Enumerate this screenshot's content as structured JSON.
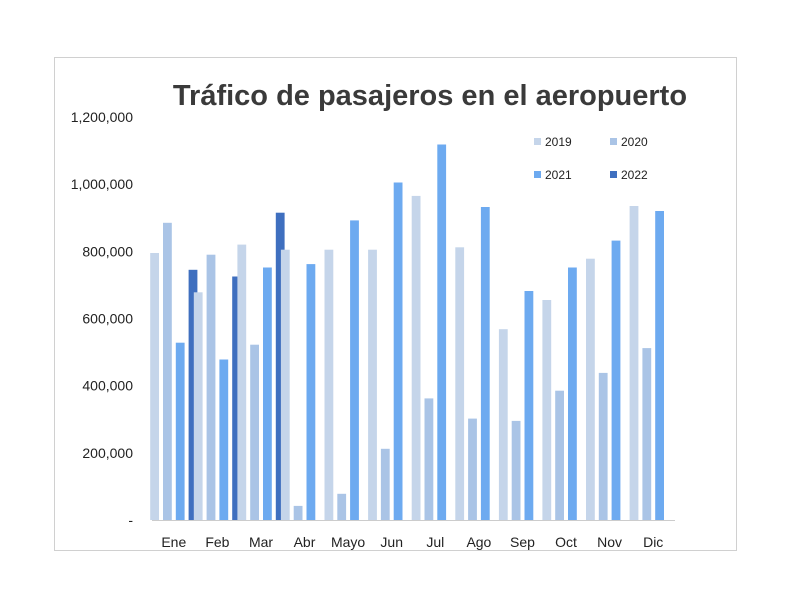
{
  "chart_data": {
    "type": "bar",
    "title": "Tráfico de pasajeros en el aeropuerto",
    "xlabel": "",
    "ylabel": "",
    "categories": [
      "Ene",
      "Feb",
      "Mar",
      "Abr",
      "Mayo",
      "Jun",
      "Jul",
      "Ago",
      "Sep",
      "Oct",
      "Nov",
      "Dic"
    ],
    "ylim": [
      0,
      1200000
    ],
    "yticks": [
      0,
      200000,
      400000,
      600000,
      800000,
      1000000,
      1200000
    ],
    "ytick_labels": [
      "-",
      "200,000",
      "400,000",
      "600,000",
      "800,000",
      "1,000,000",
      "1,200,000"
    ],
    "grid": false,
    "legend_position": "top-right",
    "series": [
      {
        "name": "2019",
        "color": "#c5d5ea",
        "values": [
          795000,
          678000,
          820000,
          805000,
          805000,
          805000,
          965000,
          812000,
          568000,
          655000,
          778000,
          935000
        ]
      },
      {
        "name": "2020",
        "color": "#aac4e6",
        "values": [
          885000,
          790000,
          522000,
          42000,
          78000,
          212000,
          362000,
          302000,
          295000,
          385000,
          438000,
          512000
        ]
      },
      {
        "name": "2021",
        "color": "#6daaf0",
        "values": [
          528000,
          478000,
          752000,
          762000,
          892000,
          1005000,
          1118000,
          932000,
          682000,
          752000,
          832000,
          920000
        ]
      },
      {
        "name": "2022",
        "color": "#3f6fbf",
        "values": [
          745000,
          725000,
          915000,
          null,
          null,
          null,
          null,
          null,
          null,
          null,
          null,
          null
        ]
      }
    ]
  }
}
